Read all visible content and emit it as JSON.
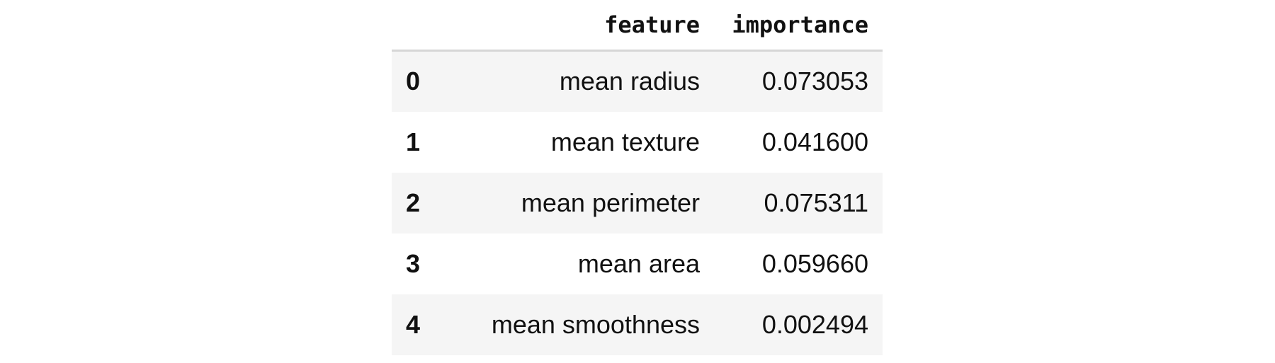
{
  "table": {
    "columns": [
      "feature",
      "importance"
    ],
    "rows": [
      {
        "index": "0",
        "feature": "mean radius",
        "importance": "0.073053"
      },
      {
        "index": "1",
        "feature": "mean texture",
        "importance": "0.041600"
      },
      {
        "index": "2",
        "feature": "mean perimeter",
        "importance": "0.075311"
      },
      {
        "index": "3",
        "feature": "mean area",
        "importance": "0.059660"
      },
      {
        "index": "4",
        "feature": "mean smoothness",
        "importance": "0.002494"
      }
    ]
  }
}
